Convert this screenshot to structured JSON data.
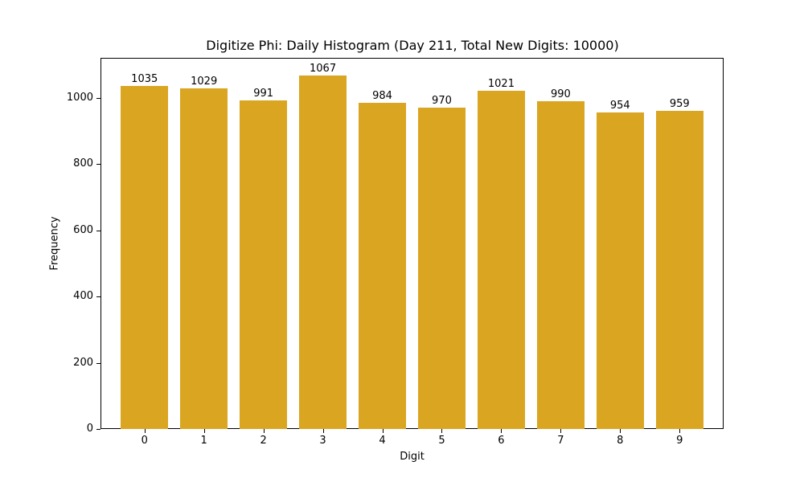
{
  "chart_data": {
    "type": "bar",
    "title": "Digitize Phi: Daily Histogram (Day 211, Total New Digits: 10000)",
    "xlabel": "Digit",
    "ylabel": "Frequency",
    "categories": [
      "0",
      "1",
      "2",
      "3",
      "4",
      "5",
      "6",
      "7",
      "8",
      "9"
    ],
    "values": [
      1035,
      1029,
      991,
      1067,
      984,
      970,
      1021,
      990,
      954,
      959
    ],
    "ylim": [
      0,
      1120
    ],
    "yticks": [
      0,
      200,
      400,
      600,
      800,
      1000
    ],
    "grid": false,
    "legend": null,
    "bar_color": "#DAA520",
    "data_labels": true
  }
}
